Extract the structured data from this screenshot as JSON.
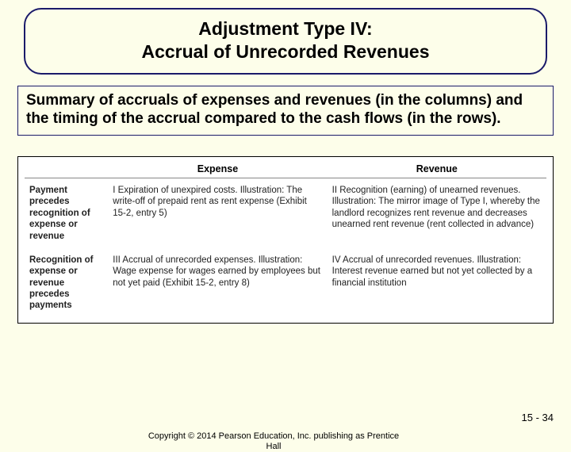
{
  "title": {
    "line1": "Adjustment Type IV:",
    "line2": "Accrual of Unrecorded Revenues"
  },
  "summary": "Summary of accruals of expenses and revenues (in the columns) and the timing of the accrual compared to the cash flows (in the rows).",
  "table": {
    "col1_header": "Expense",
    "col2_header": "Revenue",
    "row1_head": "Payment precedes recognition of expense or revenue",
    "row2_head": "Recognition of expense or revenue precedes payments",
    "cell_I": "I  Expiration of unexpired costs. Illustration: The write-off of prepaid rent as rent expense (Exhibit 15-2, entry 5)",
    "cell_II": "II  Recognition (earning) of unearned revenues. Illustration: The mirror image of Type I, whereby the landlord recognizes rent revenue and decreases unearned rent revenue (rent collected in advance)",
    "cell_III": "III Accrual of unrecorded expenses. Illustration: Wage expense for wages earned by employees but not yet paid (Exhibit 15-2, entry 8)",
    "cell_IV": "IV Accrual of unrecorded revenues. Illustration: Interest revenue earned but not yet collected by a financial institution"
  },
  "footer": {
    "copyright": "Copyright © 2014 Pearson Education, Inc. publishing as Prentice Hall",
    "page": "15 - 34"
  },
  "colors": {
    "page_bg": "#fdfeea",
    "border_blue": "#1a1a6a",
    "table_bg": "#ffffff"
  }
}
